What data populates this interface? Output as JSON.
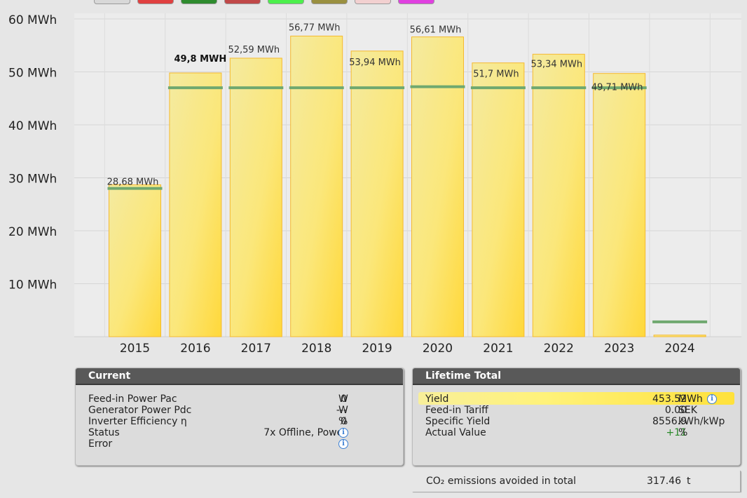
{
  "swatch_colors": [
    "#d8d8d8",
    "#e04040",
    "#2e8b2e",
    "#c04848",
    "#4cf04c",
    "#9a9040",
    "#f2d0d0",
    "#e040e0"
  ],
  "chart_data": {
    "type": "bar",
    "categories": [
      "2015",
      "2016",
      "2017",
      "2018",
      "2019",
      "2020",
      "2021",
      "2022",
      "2023",
      "2024"
    ],
    "values": [
      28.68,
      49.8,
      52.59,
      56.77,
      53.94,
      56.61,
      51.7,
      53.34,
      49.71,
      0.3
    ],
    "data_labels": [
      "28,68 MWh",
      "49,8 MWH",
      "52,59 MWh",
      "56,77 MWh",
      "53,94 MWh",
      "56,61 MWh",
      "51,7 MWh",
      "53,34 MWh",
      "49,71 MWh",
      ""
    ],
    "highlight_label_index": 1,
    "target_values": [
      28.0,
      47.0,
      47.0,
      47.0,
      47.0,
      47.2,
      47.0,
      47.0,
      47.0,
      2.8
    ],
    "target_segments_horizontal_offset": [
      -1,
      0,
      0,
      0,
      0,
      0,
      0,
      0,
      0,
      0
    ],
    "ylim": [
      0,
      60
    ],
    "yticks": [
      10,
      20,
      30,
      40,
      50,
      60
    ],
    "ytick_labels": [
      "10 MWh",
      "20 MWh",
      "30 MWh",
      "40 MWh",
      "50 MWh",
      "60 MWh"
    ],
    "grid": true,
    "bar_color": "#ffe35a",
    "target_color": "#6fa86f"
  },
  "current": {
    "title": "Current",
    "rows": [
      {
        "label": "Feed-in Power Pac",
        "value": "0",
        "unit": "W",
        "info": false
      },
      {
        "label": "Generator Power Pdc",
        "value": "---",
        "unit": "W",
        "info": false
      },
      {
        "label": "Inverter Efficiency η",
        "value": "0",
        "unit": "%",
        "info": false
      },
      {
        "label": "Status",
        "value": "7x Offline, Power",
        "unit": "",
        "info": true
      },
      {
        "label": "Error",
        "value": "",
        "unit": "",
        "info": true
      }
    ]
  },
  "lifetime": {
    "title": "Lifetime Total",
    "rows": [
      {
        "label": "Yield",
        "value": "453.52",
        "unit": "MWh",
        "info": true,
        "highlight": true
      },
      {
        "label": "Feed-in Tariff",
        "value": "0.00",
        "unit": "SEK",
        "info": false
      },
      {
        "label": "Specific Yield",
        "value": "8556.9",
        "unit": "kWh/kWp",
        "info": false
      },
      {
        "label": "Actual Value",
        "value": "+11",
        "unit": "%",
        "info": false,
        "positive": true
      }
    ]
  },
  "co2": {
    "label": "CO₂ emissions avoided in total",
    "value": "317.46",
    "unit": "t"
  }
}
